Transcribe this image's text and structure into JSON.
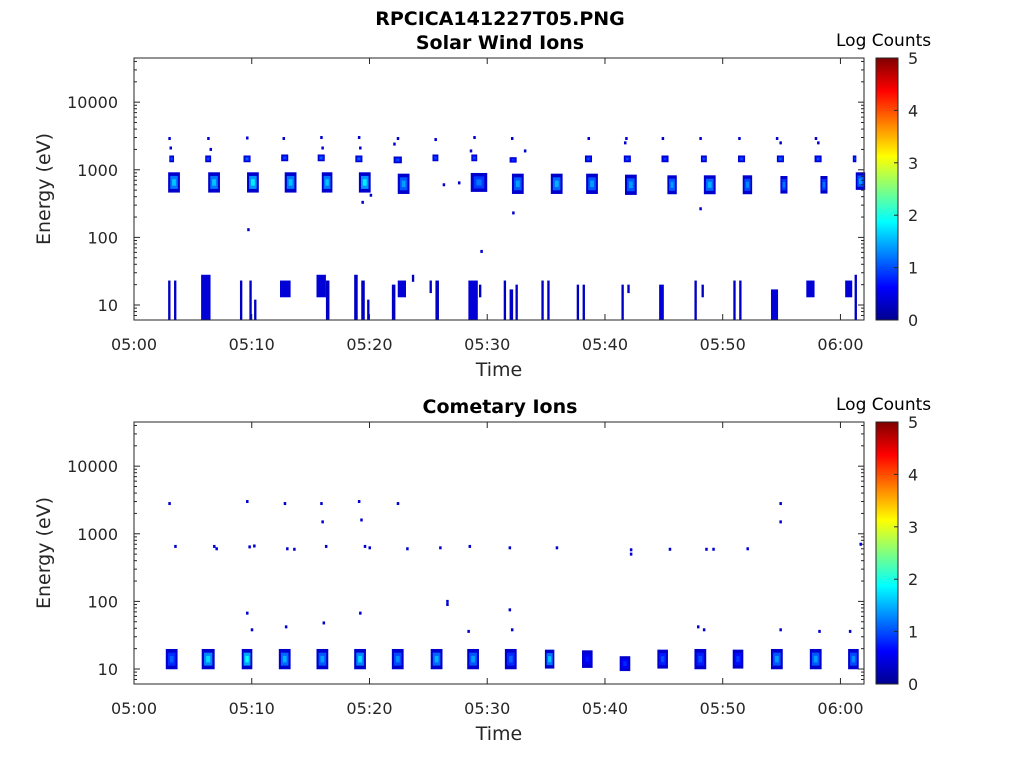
{
  "figure": {
    "filename_title": "RPCICA141227T05.PNG"
  },
  "colors": {
    "axis": "#262626",
    "colormap": [
      "#00008f",
      "#0000ff",
      "#0080ff",
      "#00ffff",
      "#80ff80",
      "#ffff00",
      "#ff8000",
      "#ff0000",
      "#800000"
    ]
  },
  "chart_data": [
    {
      "type": "heatmap",
      "title": "Solar Wind Ions",
      "xlabel": "Time",
      "ylabel": "Energy (eV)",
      "x_ticks": [
        "05:00",
        "05:10",
        "05:20",
        "05:30",
        "05:40",
        "05:50",
        "06:00"
      ],
      "x_range_minutes": [
        0,
        62
      ],
      "y_ticks": [
        "10",
        "100",
        "1000",
        "10000"
      ],
      "y_scale": "log",
      "y_range": [
        6,
        45000
      ],
      "colorbar": {
        "label": "Log Counts",
        "ticks": [
          "0",
          "1",
          "2",
          "3",
          "4",
          "5"
        ],
        "range": [
          0,
          5
        ]
      },
      "clusters": [
        {
          "t": 3.4,
          "e": 650,
          "c": 1.6,
          "w": 1.0,
          "d": 0.3
        },
        {
          "t": 6.8,
          "e": 650,
          "c": 1.6,
          "w": 1.0,
          "d": 0.3
        },
        {
          "t": 10.1,
          "e": 650,
          "c": 1.8,
          "w": 1.0,
          "d": 0.3
        },
        {
          "t": 13.3,
          "e": 650,
          "c": 1.6,
          "w": 1.0,
          "d": 0.3
        },
        {
          "t": 16.4,
          "e": 650,
          "c": 1.6,
          "w": 0.9,
          "d": 0.3
        },
        {
          "t": 19.6,
          "e": 650,
          "c": 1.8,
          "w": 1.0,
          "d": 0.3
        },
        {
          "t": 22.9,
          "e": 620,
          "c": 1.4,
          "w": 1.0,
          "d": 0.3
        },
        {
          "t": 29.3,
          "e": 650,
          "c": 1.2,
          "w": 1.4,
          "d": 0.28
        },
        {
          "t": 32.6,
          "e": 620,
          "c": 1.4,
          "w": 1.0,
          "d": 0.3
        },
        {
          "t": 35.9,
          "e": 620,
          "c": 1.5,
          "w": 1.0,
          "d": 0.3
        },
        {
          "t": 38.9,
          "e": 620,
          "c": 1.4,
          "w": 1.0,
          "d": 0.3
        },
        {
          "t": 42.2,
          "e": 600,
          "c": 1.4,
          "w": 1.0,
          "d": 0.3
        },
        {
          "t": 45.7,
          "e": 600,
          "c": 1.4,
          "w": 0.8,
          "d": 0.28
        },
        {
          "t": 48.9,
          "e": 600,
          "c": 1.5,
          "w": 1.0,
          "d": 0.28
        },
        {
          "t": 52.1,
          "e": 600,
          "c": 1.3,
          "w": 0.8,
          "d": 0.28
        },
        {
          "t": 55.2,
          "e": 600,
          "c": 1.2,
          "w": 0.6,
          "d": 0.26
        },
        {
          "t": 58.6,
          "e": 600,
          "c": 1.2,
          "w": 0.6,
          "d": 0.26
        },
        {
          "t": 61.7,
          "e": 680,
          "c": 1.4,
          "w": 0.8,
          "d": 0.26
        },
        {
          "t": 3.2,
          "e": 1450,
          "c": 1.0,
          "w": 0.4,
          "d": 0.1
        },
        {
          "t": 6.3,
          "e": 1450,
          "c": 1.0,
          "w": 0.5,
          "d": 0.1
        },
        {
          "t": 9.6,
          "e": 1450,
          "c": 1.1,
          "w": 0.6,
          "d": 0.1
        },
        {
          "t": 12.8,
          "e": 1500,
          "c": 1.0,
          "w": 0.6,
          "d": 0.1
        },
        {
          "t": 15.9,
          "e": 1500,
          "c": 1.1,
          "w": 0.6,
          "d": 0.1
        },
        {
          "t": 19.1,
          "e": 1450,
          "c": 1.1,
          "w": 0.6,
          "d": 0.1
        },
        {
          "t": 22.4,
          "e": 1400,
          "c": 1.0,
          "w": 0.7,
          "d": 0.1
        },
        {
          "t": 25.6,
          "e": 1500,
          "c": 1.0,
          "w": 0.5,
          "d": 0.1
        },
        {
          "t": 28.9,
          "e": 1500,
          "c": 1.0,
          "w": 0.5,
          "d": 0.1
        },
        {
          "t": 32.2,
          "e": 1400,
          "c": 0.9,
          "w": 0.6,
          "d": 0.08
        },
        {
          "t": 38.6,
          "e": 1450,
          "c": 1.0,
          "w": 0.6,
          "d": 0.1
        },
        {
          "t": 41.9,
          "e": 1450,
          "c": 1.0,
          "w": 0.6,
          "d": 0.1
        },
        {
          "t": 45.1,
          "e": 1450,
          "c": 0.9,
          "w": 0.6,
          "d": 0.1
        },
        {
          "t": 48.4,
          "e": 1450,
          "c": 1.0,
          "w": 0.5,
          "d": 0.1
        },
        {
          "t": 51.6,
          "e": 1450,
          "c": 1.0,
          "w": 0.6,
          "d": 0.1
        },
        {
          "t": 54.9,
          "e": 1450,
          "c": 1.1,
          "w": 0.6,
          "d": 0.1
        },
        {
          "t": 58.1,
          "e": 1450,
          "c": 1.0,
          "w": 0.6,
          "d": 0.1
        },
        {
          "t": 61.2,
          "e": 1450,
          "c": 0.9,
          "w": 0.3,
          "d": 0.1
        }
      ],
      "dots": [
        {
          "t": 3.0,
          "e": 2900
        },
        {
          "t": 3.1,
          "e": 2100
        },
        {
          "t": 6.3,
          "e": 2900
        },
        {
          "t": 6.5,
          "e": 2000
        },
        {
          "t": 9.6,
          "e": 2950
        },
        {
          "t": 12.7,
          "e": 2900
        },
        {
          "t": 15.9,
          "e": 3000
        },
        {
          "t": 16.0,
          "e": 2100
        },
        {
          "t": 19.1,
          "e": 3000
        },
        {
          "t": 19.2,
          "e": 2100
        },
        {
          "t": 22.4,
          "e": 2900
        },
        {
          "t": 22.1,
          "e": 2400
        },
        {
          "t": 25.6,
          "e": 2800
        },
        {
          "t": 28.9,
          "e": 3000
        },
        {
          "t": 28.6,
          "e": 1900
        },
        {
          "t": 32.1,
          "e": 2900
        },
        {
          "t": 33.2,
          "e": 1900
        },
        {
          "t": 38.6,
          "e": 2900
        },
        {
          "t": 41.8,
          "e": 2900
        },
        {
          "t": 41.7,
          "e": 2500
        },
        {
          "t": 44.9,
          "e": 2900
        },
        {
          "t": 48.1,
          "e": 2900
        },
        {
          "t": 51.4,
          "e": 2900
        },
        {
          "t": 54.6,
          "e": 2900
        },
        {
          "t": 54.9,
          "e": 2500
        },
        {
          "t": 57.9,
          "e": 2900
        },
        {
          "t": 58.1,
          "e": 2500
        },
        {
          "t": 9.7,
          "e": 130
        },
        {
          "t": 19.4,
          "e": 330
        },
        {
          "t": 20.1,
          "e": 420
        },
        {
          "t": 29.5,
          "e": 62
        },
        {
          "t": 32.2,
          "e": 230
        },
        {
          "t": 48.1,
          "e": 265
        },
        {
          "t": 26.3,
          "e": 600
        },
        {
          "t": 27.6,
          "e": 640
        }
      ],
      "bars": [
        {
          "t": 2.9,
          "w": 0.2,
          "lo": 6,
          "hi": 23,
          "c": 0.3
        },
        {
          "t": 3.4,
          "w": 0.2,
          "lo": 6,
          "hi": 23,
          "c": 0.3
        },
        {
          "t": 5.7,
          "w": 0.8,
          "lo": 6,
          "hi": 28,
          "c": 0.4
        },
        {
          "t": 9.0,
          "w": 0.2,
          "lo": 6,
          "hi": 23,
          "c": 0.3
        },
        {
          "t": 9.8,
          "w": 0.2,
          "lo": 6,
          "hi": 23,
          "c": 0.3
        },
        {
          "t": 10.2,
          "w": 0.2,
          "lo": 6,
          "hi": 12,
          "c": 0.3
        },
        {
          "t": 12.4,
          "w": 0.9,
          "lo": 13,
          "hi": 23,
          "c": 0.4
        },
        {
          "t": 15.5,
          "w": 0.8,
          "lo": 13,
          "hi": 28,
          "c": 0.4
        },
        {
          "t": 16.3,
          "w": 0.3,
          "lo": 6,
          "hi": 23,
          "c": 0.3
        },
        {
          "t": 18.7,
          "w": 0.3,
          "lo": 6,
          "hi": 28,
          "c": 0.3
        },
        {
          "t": 19.3,
          "w": 0.3,
          "lo": 6,
          "hi": 23,
          "c": 0.3
        },
        {
          "t": 19.8,
          "w": 0.2,
          "lo": 6,
          "hi": 12,
          "c": 0.3
        },
        {
          "t": 21.9,
          "w": 0.3,
          "lo": 6,
          "hi": 20,
          "c": 0.3
        },
        {
          "t": 22.4,
          "w": 0.7,
          "lo": 13,
          "hi": 23,
          "c": 0.4
        },
        {
          "t": 23.6,
          "w": 0.2,
          "lo": 22,
          "hi": 28,
          "c": 0.3
        },
        {
          "t": 25.1,
          "w": 0.2,
          "lo": 15,
          "hi": 23,
          "c": 0.3
        },
        {
          "t": 25.6,
          "w": 0.3,
          "lo": 6,
          "hi": 23,
          "c": 0.3
        },
        {
          "t": 28.4,
          "w": 0.8,
          "lo": 6,
          "hi": 23,
          "c": 0.4
        },
        {
          "t": 29.3,
          "w": 0.2,
          "lo": 13,
          "hi": 20,
          "c": 0.3
        },
        {
          "t": 31.4,
          "w": 0.2,
          "lo": 6,
          "hi": 23,
          "c": 0.3
        },
        {
          "t": 31.9,
          "w": 0.3,
          "lo": 6,
          "hi": 17,
          "c": 0.3
        },
        {
          "t": 32.4,
          "w": 0.2,
          "lo": 6,
          "hi": 20,
          "c": 0.3
        },
        {
          "t": 34.6,
          "w": 0.2,
          "lo": 6,
          "hi": 23,
          "c": 0.3
        },
        {
          "t": 35.1,
          "w": 0.2,
          "lo": 6,
          "hi": 23,
          "c": 0.3
        },
        {
          "t": 37.6,
          "w": 0.2,
          "lo": 6,
          "hi": 20,
          "c": 0.3
        },
        {
          "t": 38.1,
          "w": 0.2,
          "lo": 6,
          "hi": 20,
          "c": 0.3
        },
        {
          "t": 41.4,
          "w": 0.2,
          "lo": 6,
          "hi": 20,
          "c": 0.3
        },
        {
          "t": 41.9,
          "w": 0.2,
          "lo": 15,
          "hi": 20,
          "c": 0.3
        },
        {
          "t": 44.6,
          "w": 0.4,
          "lo": 6,
          "hi": 20,
          "c": 0.4
        },
        {
          "t": 47.6,
          "w": 0.2,
          "lo": 6,
          "hi": 23,
          "c": 0.3
        },
        {
          "t": 48.2,
          "w": 0.2,
          "lo": 13,
          "hi": 20,
          "c": 0.3
        },
        {
          "t": 50.9,
          "w": 0.2,
          "lo": 6,
          "hi": 23,
          "c": 0.3
        },
        {
          "t": 51.4,
          "w": 0.2,
          "lo": 6,
          "hi": 23,
          "c": 0.3
        },
        {
          "t": 54.1,
          "w": 0.6,
          "lo": 6,
          "hi": 17,
          "c": 0.4
        },
        {
          "t": 57.1,
          "w": 0.7,
          "lo": 13,
          "hi": 23,
          "c": 0.4
        },
        {
          "t": 60.4,
          "w": 0.6,
          "lo": 13,
          "hi": 23,
          "c": 0.4
        },
        {
          "t": 61.2,
          "w": 0.2,
          "lo": 6,
          "hi": 28,
          "c": 0.3
        }
      ]
    },
    {
      "type": "heatmap",
      "title": "Cometary Ions",
      "xlabel": "Time",
      "ylabel": "Energy (eV)",
      "x_ticks": [
        "05:00",
        "05:10",
        "05:20",
        "05:30",
        "05:40",
        "05:50",
        "06:00"
      ],
      "x_range_minutes": [
        0,
        62
      ],
      "y_ticks": [
        "10",
        "100",
        "1000",
        "10000"
      ],
      "y_scale": "log",
      "y_range": [
        6,
        45000
      ],
      "colorbar": {
        "label": "Log Counts",
        "ticks": [
          "0",
          "1",
          "2",
          "3",
          "4",
          "5"
        ],
        "range": [
          0,
          5
        ]
      },
      "clusters": [
        {
          "t": 3.2,
          "e": 14,
          "c": 1.1,
          "w": 1.0,
          "d": 0.3
        },
        {
          "t": 6.3,
          "e": 14,
          "c": 1.7,
          "w": 1.1,
          "d": 0.3
        },
        {
          "t": 9.6,
          "e": 14,
          "c": 1.9,
          "w": 0.9,
          "d": 0.3
        },
        {
          "t": 12.8,
          "e": 14,
          "c": 1.5,
          "w": 1.0,
          "d": 0.3
        },
        {
          "t": 16.0,
          "e": 14,
          "c": 1.4,
          "w": 1.0,
          "d": 0.3
        },
        {
          "t": 19.2,
          "e": 14,
          "c": 1.7,
          "w": 1.0,
          "d": 0.3
        },
        {
          "t": 22.4,
          "e": 14,
          "c": 1.3,
          "w": 1.0,
          "d": 0.3
        },
        {
          "t": 25.7,
          "e": 14,
          "c": 1.5,
          "w": 1.0,
          "d": 0.3
        },
        {
          "t": 28.8,
          "e": 14,
          "c": 1.4,
          "w": 1.0,
          "d": 0.3
        },
        {
          "t": 32.0,
          "e": 14,
          "c": 1.1,
          "w": 1.0,
          "d": 0.3
        },
        {
          "t": 35.3,
          "e": 14,
          "c": 1.6,
          "w": 0.8,
          "d": 0.28
        },
        {
          "t": 38.5,
          "e": 14,
          "c": 0.7,
          "w": 0.9,
          "d": 0.26
        },
        {
          "t": 41.7,
          "e": 12,
          "c": 0.8,
          "w": 0.9,
          "d": 0.22
        },
        {
          "t": 44.9,
          "e": 14,
          "c": 1.0,
          "w": 0.9,
          "d": 0.28
        },
        {
          "t": 48.1,
          "e": 14,
          "c": 1.0,
          "w": 1.0,
          "d": 0.3
        },
        {
          "t": 51.3,
          "e": 14,
          "c": 0.9,
          "w": 0.9,
          "d": 0.28
        },
        {
          "t": 54.6,
          "e": 14,
          "c": 1.4,
          "w": 1.0,
          "d": 0.3
        },
        {
          "t": 57.9,
          "e": 14,
          "c": 1.4,
          "w": 1.0,
          "d": 0.3
        },
        {
          "t": 61.1,
          "e": 14,
          "c": 1.3,
          "w": 0.9,
          "d": 0.3
        }
      ],
      "dots": [
        {
          "t": 3.0,
          "e": 2800
        },
        {
          "t": 3.5,
          "e": 650
        },
        {
          "t": 6.8,
          "e": 650
        },
        {
          "t": 7.0,
          "e": 600
        },
        {
          "t": 9.6,
          "e": 3000
        },
        {
          "t": 9.8,
          "e": 640
        },
        {
          "t": 10.2,
          "e": 660
        },
        {
          "t": 12.8,
          "e": 2800
        },
        {
          "t": 13.0,
          "e": 600
        },
        {
          "t": 13.6,
          "e": 590
        },
        {
          "t": 15.9,
          "e": 2800
        },
        {
          "t": 16.0,
          "e": 1500
        },
        {
          "t": 16.3,
          "e": 650
        },
        {
          "t": 19.1,
          "e": 3000
        },
        {
          "t": 19.3,
          "e": 1600
        },
        {
          "t": 19.6,
          "e": 650
        },
        {
          "t": 20.0,
          "e": 620
        },
        {
          "t": 22.4,
          "e": 2800
        },
        {
          "t": 23.2,
          "e": 600
        },
        {
          "t": 26.0,
          "e": 620
        },
        {
          "t": 28.5,
          "e": 650
        },
        {
          "t": 31.9,
          "e": 620
        },
        {
          "t": 35.9,
          "e": 620
        },
        {
          "t": 42.2,
          "e": 580
        },
        {
          "t": 42.2,
          "e": 500
        },
        {
          "t": 45.5,
          "e": 590
        },
        {
          "t": 48.6,
          "e": 590
        },
        {
          "t": 49.2,
          "e": 590
        },
        {
          "t": 52.1,
          "e": 600
        },
        {
          "t": 54.9,
          "e": 2800
        },
        {
          "t": 54.9,
          "e": 1500
        },
        {
          "t": 61.7,
          "e": 700
        },
        {
          "t": 9.6,
          "e": 67
        },
        {
          "t": 19.2,
          "e": 67
        },
        {
          "t": 26.6,
          "e": 100
        },
        {
          "t": 26.6,
          "e": 90
        },
        {
          "t": 31.9,
          "e": 75
        },
        {
          "t": 10.0,
          "e": 38
        },
        {
          "t": 12.9,
          "e": 42
        },
        {
          "t": 16.1,
          "e": 48
        },
        {
          "t": 28.4,
          "e": 36
        },
        {
          "t": 32.1,
          "e": 38
        },
        {
          "t": 47.9,
          "e": 42
        },
        {
          "t": 48.4,
          "e": 38
        },
        {
          "t": 54.9,
          "e": 38
        },
        {
          "t": 58.2,
          "e": 36
        },
        {
          "t": 60.8,
          "e": 36
        }
      ],
      "bars": []
    }
  ]
}
